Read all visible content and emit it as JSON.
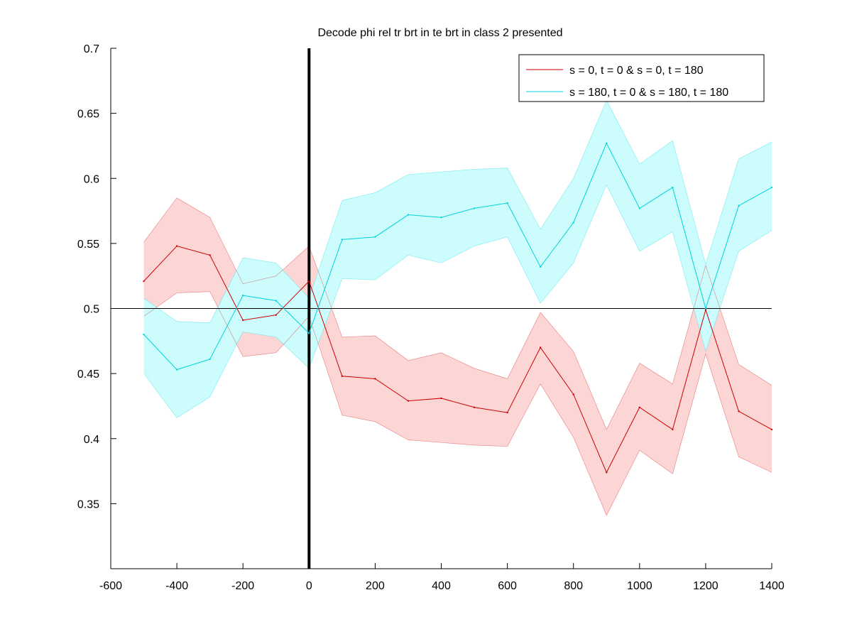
{
  "chart_data": {
    "type": "line",
    "title": "Decode phi rel tr brt in te brt in  class 2 presented",
    "xlabel": "",
    "ylabel": "",
    "xlim": [
      -600,
      1400
    ],
    "ylim": [
      0.3,
      0.7
    ],
    "xticks": [
      -600,
      -400,
      -200,
      0,
      200,
      400,
      600,
      800,
      1000,
      1200,
      1400
    ],
    "yticks": [
      0.35,
      0.4,
      0.45,
      0.5,
      0.55,
      0.6,
      0.65,
      0.7
    ],
    "grid": false,
    "legend_position": "top-right",
    "reference_lines": [
      {
        "orientation": "horizontal",
        "value": 0.5,
        "color": "#000000"
      },
      {
        "orientation": "vertical",
        "value": 0,
        "color": "#000000"
      }
    ],
    "x": [
      -500,
      -400,
      -300,
      -200,
      -100,
      0,
      100,
      200,
      300,
      400,
      500,
      600,
      700,
      800,
      900,
      1000,
      1100,
      1200,
      1300,
      1400
    ],
    "series": [
      {
        "name": "s = 0, t = 0 & s = 0, t = 180",
        "color": "#cc0000",
        "band_color": "#fcd5d5",
        "values": [
          0.521,
          0.548,
          0.541,
          0.491,
          0.495,
          0.521,
          0.448,
          0.446,
          0.429,
          0.431,
          0.424,
          0.42,
          0.47,
          0.434,
          0.374,
          0.424,
          0.407,
          0.499,
          0.421,
          0.407
        ],
        "lower": [
          0.494,
          0.512,
          0.513,
          0.463,
          0.466,
          0.494,
          0.418,
          0.413,
          0.399,
          0.397,
          0.395,
          0.394,
          0.442,
          0.401,
          0.341,
          0.391,
          0.373,
          0.465,
          0.386,
          0.374
        ],
        "upper": [
          0.551,
          0.585,
          0.57,
          0.519,
          0.525,
          0.548,
          0.478,
          0.479,
          0.46,
          0.466,
          0.454,
          0.446,
          0.497,
          0.467,
          0.407,
          0.458,
          0.442,
          0.533,
          0.457,
          0.441
        ]
      },
      {
        "name": "s = 180, t = 0 & s = 180, t = 180",
        "color": "#00d2dc",
        "band_color": "#ccfcfc",
        "values": [
          0.48,
          0.453,
          0.461,
          0.51,
          0.506,
          0.481,
          0.553,
          0.555,
          0.572,
          0.57,
          0.577,
          0.581,
          0.532,
          0.566,
          0.627,
          0.577,
          0.593,
          0.5,
          0.579,
          0.593
        ],
        "lower": [
          0.45,
          0.416,
          0.432,
          0.482,
          0.478,
          0.454,
          0.523,
          0.522,
          0.541,
          0.535,
          0.548,
          0.555,
          0.504,
          0.535,
          0.595,
          0.544,
          0.559,
          0.467,
          0.544,
          0.56
        ],
        "upper": [
          0.508,
          0.49,
          0.489,
          0.539,
          0.535,
          0.508,
          0.583,
          0.589,
          0.603,
          0.605,
          0.607,
          0.608,
          0.561,
          0.6,
          0.66,
          0.611,
          0.629,
          0.534,
          0.615,
          0.628
        ]
      }
    ]
  }
}
